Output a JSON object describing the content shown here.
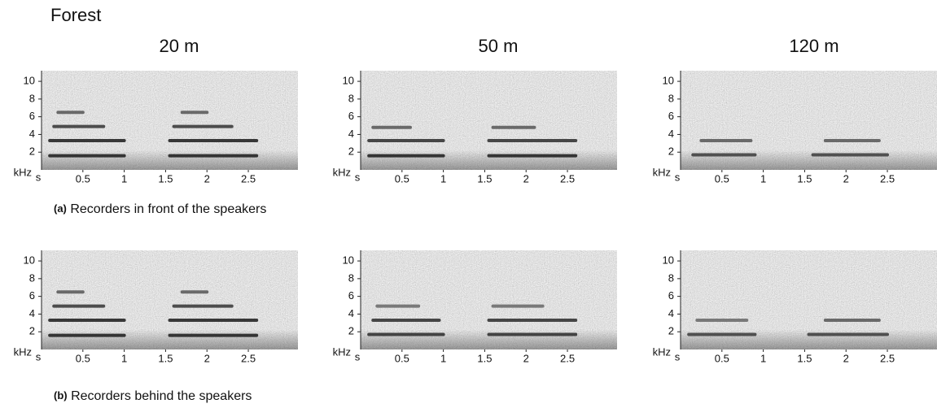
{
  "title": "Forest",
  "columns": [
    "20 m",
    "50 m",
    "120 m"
  ],
  "captions": [
    {
      "tag": "(a)",
      "text": "Recorders in front of the speakers"
    },
    {
      "tag": "(b)",
      "text": "Recorders behind the speakers"
    }
  ],
  "chart_data": [
    {
      "type": "spectrogram",
      "x_label": "s",
      "y_label": "kHz",
      "xlim": [
        0,
        3.1
      ],
      "ylim": [
        0,
        11.2
      ],
      "xticks": [
        0.5,
        1,
        1.5,
        2,
        2.5
      ],
      "yticks": [
        2,
        4,
        6,
        8,
        10
      ],
      "series": [
        {
          "color": "#1a1a1a",
          "x": [
            0.1,
            1.0
          ],
          "values": [
            1.6,
            1.6
          ]
        },
        {
          "color": "#1a1a1a",
          "x": [
            0.1,
            1.0
          ],
          "values": [
            3.3,
            3.3
          ]
        },
        {
          "color": "#333333",
          "x": [
            0.15,
            0.75
          ],
          "values": [
            4.9,
            4.9
          ]
        },
        {
          "color": "#555555",
          "x": [
            0.2,
            0.5
          ],
          "values": [
            6.5,
            6.5
          ]
        },
        {
          "color": "#1a1a1a",
          "x": [
            1.55,
            2.6
          ],
          "values": [
            1.6,
            1.6
          ]
        },
        {
          "color": "#1a1a1a",
          "x": [
            1.55,
            2.6
          ],
          "values": [
            3.3,
            3.3
          ]
        },
        {
          "color": "#333333",
          "x": [
            1.6,
            2.3
          ],
          "values": [
            4.9,
            4.9
          ]
        },
        {
          "color": "#555555",
          "x": [
            1.7,
            2.0
          ],
          "values": [
            6.5,
            6.5
          ]
        }
      ]
    },
    {
      "type": "spectrogram",
      "x_label": "s",
      "y_label": "kHz",
      "xlim": [
        0,
        3.1
      ],
      "ylim": [
        0,
        11.2
      ],
      "xticks": [
        0.5,
        1,
        1.5,
        2,
        2.5
      ],
      "yticks": [
        2,
        4,
        6,
        8,
        10
      ],
      "series": [
        {
          "color": "#1a1a1a",
          "x": [
            0.1,
            1.0
          ],
          "values": [
            1.6,
            1.6
          ]
        },
        {
          "color": "#2a2a2a",
          "x": [
            0.1,
            1.0
          ],
          "values": [
            3.3,
            3.3
          ]
        },
        {
          "color": "#555555",
          "x": [
            0.15,
            0.6
          ],
          "values": [
            4.8,
            4.8
          ]
        },
        {
          "color": "#1a1a1a",
          "x": [
            1.55,
            2.6
          ],
          "values": [
            1.6,
            1.6
          ]
        },
        {
          "color": "#2a2a2a",
          "x": [
            1.55,
            2.6
          ],
          "values": [
            3.3,
            3.3
          ]
        },
        {
          "color": "#555555",
          "x": [
            1.6,
            2.1
          ],
          "values": [
            4.8,
            4.8
          ]
        }
      ]
    },
    {
      "type": "spectrogram",
      "x_label": "s",
      "y_label": "kHz",
      "xlim": [
        0,
        3.1
      ],
      "ylim": [
        0,
        11.2
      ],
      "xticks": [
        0.5,
        1,
        1.5,
        2,
        2.5
      ],
      "yticks": [
        2,
        4,
        6,
        8,
        10
      ],
      "series": [
        {
          "color": "#3a3a3a",
          "x": [
            0.15,
            0.9
          ],
          "values": [
            1.7,
            1.7
          ]
        },
        {
          "color": "#555555",
          "x": [
            0.25,
            0.85
          ],
          "values": [
            3.3,
            3.3
          ]
        },
        {
          "color": "#3a3a3a",
          "x": [
            1.6,
            2.5
          ],
          "values": [
            1.7,
            1.7
          ]
        },
        {
          "color": "#555555",
          "x": [
            1.75,
            2.4
          ],
          "values": [
            3.3,
            3.3
          ]
        }
      ]
    },
    {
      "type": "spectrogram",
      "x_label": "s",
      "y_label": "kHz",
      "xlim": [
        0,
        3.1
      ],
      "ylim": [
        0,
        11.2
      ],
      "xticks": [
        0.5,
        1,
        1.5,
        2,
        2.5
      ],
      "yticks": [
        2,
        4,
        6,
        8,
        10
      ],
      "series": [
        {
          "color": "#1a1a1a",
          "x": [
            0.1,
            1.0
          ],
          "values": [
            1.6,
            1.6
          ]
        },
        {
          "color": "#1a1a1a",
          "x": [
            0.1,
            1.0
          ],
          "values": [
            3.3,
            3.3
          ]
        },
        {
          "color": "#333333",
          "x": [
            0.15,
            0.75
          ],
          "values": [
            4.9,
            4.9
          ]
        },
        {
          "color": "#555555",
          "x": [
            0.2,
            0.5
          ],
          "values": [
            6.5,
            6.5
          ]
        },
        {
          "color": "#1a1a1a",
          "x": [
            1.55,
            2.6
          ],
          "values": [
            1.6,
            1.6
          ]
        },
        {
          "color": "#1a1a1a",
          "x": [
            1.55,
            2.6
          ],
          "values": [
            3.3,
            3.3
          ]
        },
        {
          "color": "#333333",
          "x": [
            1.6,
            2.3
          ],
          "values": [
            4.9,
            4.9
          ]
        },
        {
          "color": "#555555",
          "x": [
            1.7,
            2.0
          ],
          "values": [
            6.5,
            6.5
          ]
        }
      ]
    },
    {
      "type": "spectrogram",
      "x_label": "s",
      "y_label": "kHz",
      "xlim": [
        0,
        3.1
      ],
      "ylim": [
        0,
        11.2
      ],
      "xticks": [
        0.5,
        1,
        1.5,
        2,
        2.5
      ],
      "yticks": [
        2,
        4,
        6,
        8,
        10
      ],
      "series": [
        {
          "color": "#2a2a2a",
          "x": [
            0.1,
            1.0
          ],
          "values": [
            1.7,
            1.7
          ]
        },
        {
          "color": "#2a2a2a",
          "x": [
            0.15,
            0.95
          ],
          "values": [
            3.3,
            3.3
          ]
        },
        {
          "color": "#666666",
          "x": [
            0.2,
            0.7
          ],
          "values": [
            4.9,
            4.9
          ]
        },
        {
          "color": "#2a2a2a",
          "x": [
            1.55,
            2.6
          ],
          "values": [
            1.7,
            1.7
          ]
        },
        {
          "color": "#2a2a2a",
          "x": [
            1.55,
            2.6
          ],
          "values": [
            3.3,
            3.3
          ]
        },
        {
          "color": "#666666",
          "x": [
            1.6,
            2.2
          ],
          "values": [
            4.9,
            4.9
          ]
        }
      ]
    },
    {
      "type": "spectrogram",
      "x_label": "s",
      "y_label": "kHz",
      "xlim": [
        0,
        3.1
      ],
      "ylim": [
        0,
        11.2
      ],
      "xticks": [
        0.5,
        1,
        1.5,
        2,
        2.5
      ],
      "yticks": [
        2,
        4,
        6,
        8,
        10
      ],
      "series": [
        {
          "color": "#3a3a3a",
          "x": [
            0.1,
            0.9
          ],
          "values": [
            1.7,
            1.7
          ]
        },
        {
          "color": "#666666",
          "x": [
            0.2,
            0.8
          ],
          "values": [
            3.3,
            3.3
          ]
        },
        {
          "color": "#3a3a3a",
          "x": [
            1.55,
            2.5
          ],
          "values": [
            1.7,
            1.7
          ]
        },
        {
          "color": "#555555",
          "x": [
            1.75,
            2.4
          ],
          "values": [
            3.3,
            3.3
          ]
        }
      ]
    }
  ]
}
